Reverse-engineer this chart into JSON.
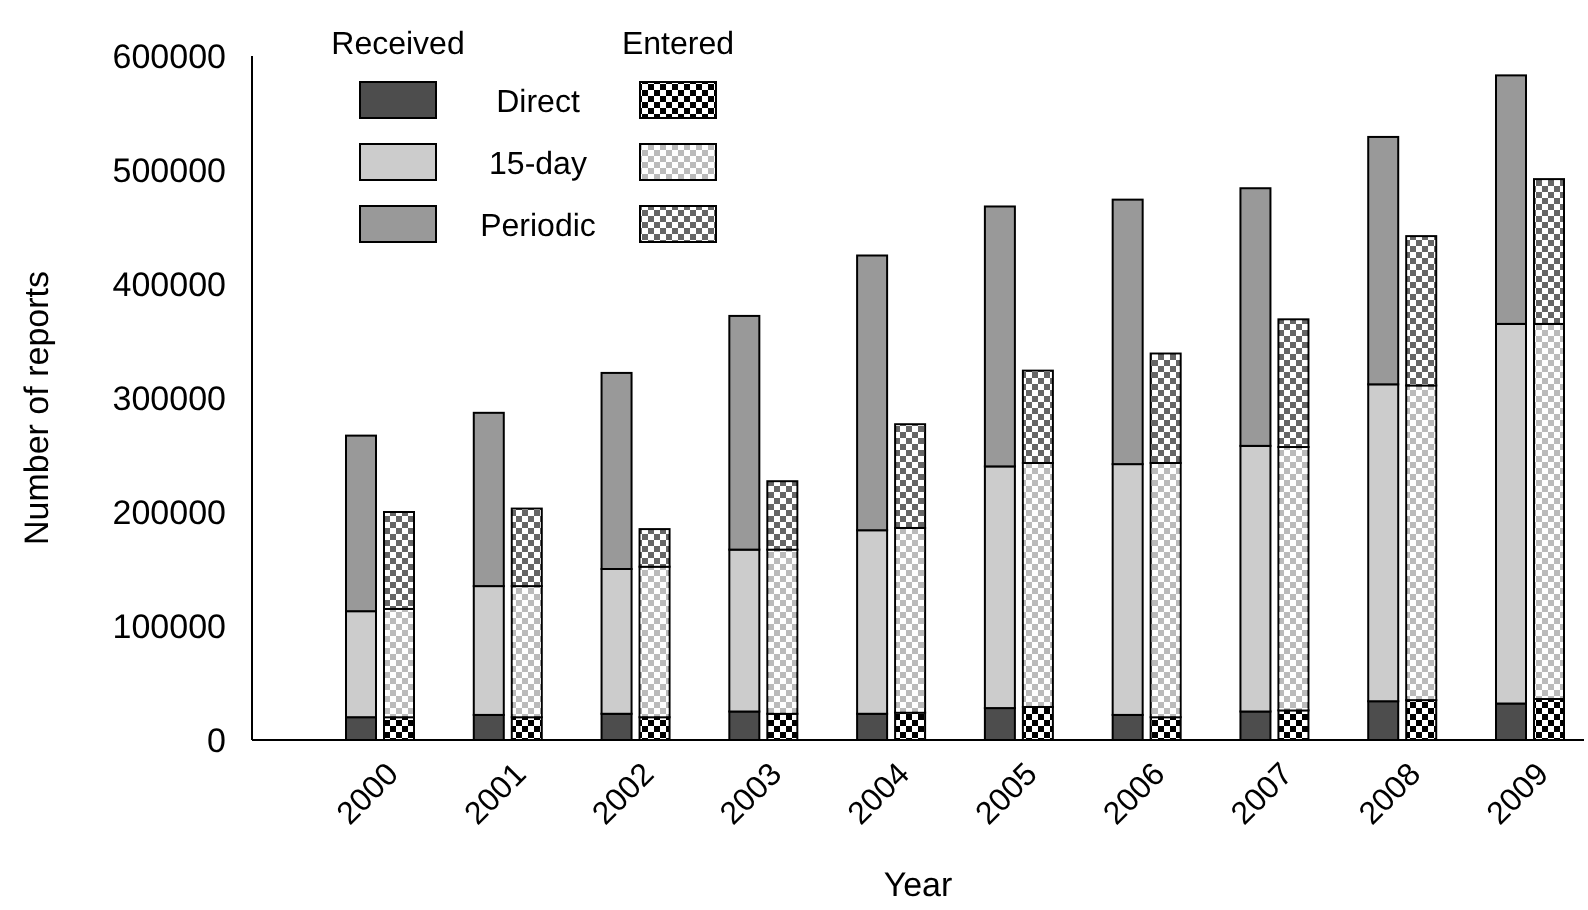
{
  "chart_data": {
    "type": "bar",
    "stacked": true,
    "xlabel": "Year",
    "ylabel": "Number of reports",
    "categories": [
      "2000",
      null,
      "2001",
      null,
      "2002",
      null,
      "2003",
      null,
      "2004",
      null,
      "2005",
      null,
      "2006",
      null,
      "2007",
      null,
      "2008",
      null,
      "2009",
      null
    ],
    "ylim": [
      0,
      600000
    ],
    "yticks": [
      0,
      100000,
      200000,
      300000,
      400000,
      500000,
      600000
    ],
    "grid": false,
    "legend": "top left",
    "annotations": [
      "Received",
      "Entered"
    ],
    "series": [
      {
        "name": "Direct",
        "color": "#4d4d4d",
        "values": [
          20000,
          null,
          22000,
          null,
          23000,
          null,
          25000,
          null,
          23000,
          null,
          28000,
          null,
          22000,
          null,
          25000,
          null,
          34000,
          null,
          32000,
          null
        ]
      },
      {
        "name": "15-day",
        "color": "#cccccc",
        "values": [
          93000,
          null,
          113000,
          null,
          127000,
          null,
          142000,
          null,
          161000,
          null,
          212000,
          null,
          220000,
          null,
          233000,
          null,
          278000,
          null,
          333000,
          null
        ]
      },
      {
        "name": "Periodic",
        "color": "#999999",
        "values": [
          154000,
          null,
          152000,
          null,
          172000,
          null,
          205000,
          null,
          241000,
          null,
          228000,
          null,
          232000,
          null,
          226000,
          null,
          217000,
          null,
          218000,
          null
        ]
      },
      {
        "color": "#000000",
        "values": [
          null,
          20000,
          null,
          20000,
          null,
          20000,
          null,
          23000,
          null,
          24000,
          null,
          29000,
          null,
          20000,
          null,
          26000,
          null,
          35000,
          null,
          36000
        ]
      },
      {
        "color": "#bbbbbb",
        "values": [
          null,
          95000,
          null,
          115000,
          null,
          132000,
          null,
          144000,
          null,
          162000,
          null,
          214000,
          null,
          223000,
          null,
          231000,
          null,
          276000,
          null,
          329000
        ]
      },
      {
        "color": "#666666",
        "values": [
          null,
          85000,
          null,
          68000,
          null,
          33000,
          null,
          60000,
          null,
          91000,
          null,
          81000,
          null,
          96000,
          null,
          112000,
          null,
          131000,
          null,
          127000
        ]
      }
    ]
  }
}
